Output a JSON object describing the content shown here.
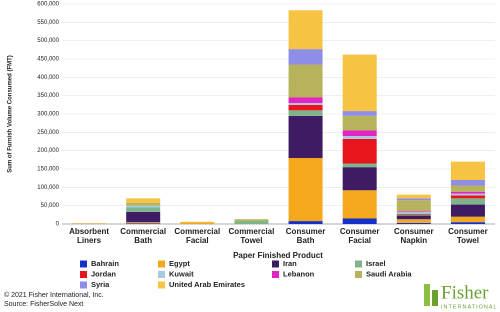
{
  "chart_data": {
    "type": "stacked_bar",
    "y_label": "Sum of Furnish Volume Consumed (FMT)",
    "x_label": "Paper Finished Product",
    "categories": [
      "Absorbent Liners",
      "Commercial Bath",
      "Commercial Facial",
      "Commercial Towel",
      "Consumer Bath",
      "Consumer Facial",
      "Consumer Napkin",
      "Consumer Towel"
    ],
    "series": [
      {
        "name": "Bahrain",
        "color": "#1530c8",
        "values": [
          0,
          2000,
          0,
          0,
          8000,
          15000,
          3000,
          5000
        ]
      },
      {
        "name": "Egypt",
        "color": "#f6a81c",
        "values": [
          1000,
          3000,
          5000,
          0,
          172000,
          77000,
          10000,
          15000
        ]
      },
      {
        "name": "Iran",
        "color": "#3f1b63",
        "values": [
          0,
          28000,
          0,
          0,
          115000,
          63000,
          10000,
          33000
        ]
      },
      {
        "name": "Israel",
        "color": "#7db48a",
        "values": [
          0,
          12000,
          0,
          8000,
          15000,
          10000,
          3000,
          17000
        ]
      },
      {
        "name": "Jordan",
        "color": "#e8151e",
        "values": [
          0,
          0,
          0,
          0,
          15000,
          67000,
          2000,
          8000
        ]
      },
      {
        "name": "Kuwait",
        "color": "#a9c9e2",
        "values": [
          0,
          5000,
          0,
          0,
          5000,
          8000,
          5000,
          5000
        ]
      },
      {
        "name": "Lebanon",
        "color": "#e324c4",
        "values": [
          0,
          0,
          0,
          0,
          15000,
          15000,
          2000,
          5000
        ]
      },
      {
        "name": "Saudi Arabia",
        "color": "#b7b35c",
        "values": [
          1000,
          8000,
          0,
          5000,
          90000,
          40000,
          30000,
          17000
        ]
      },
      {
        "name": "Syria",
        "color": "#8f8ee6",
        "values": [
          0,
          0,
          0,
          0,
          42000,
          13000,
          5000,
          15000
        ]
      },
      {
        "name": "United Arab Emirates",
        "color": "#f7c343",
        "values": [
          0,
          12000,
          1000,
          0,
          106000,
          154000,
          10000,
          50000
        ]
      }
    ],
    "ylim": [
      0,
      600000
    ],
    "yticks": [
      0,
      {
        "value": 50000,
        "label": "50,000"
      },
      {
        "value": 100000,
        "label": "100,000"
      },
      {
        "value": 150000,
        "label": "150,000"
      },
      {
        "value": 200000,
        "label": "200,000"
      },
      {
        "value": 250000,
        "label": "250,000"
      },
      {
        "value": 300000,
        "label": "300,000"
      },
      {
        "value": 350000,
        "label": "350,000"
      },
      {
        "value": 400000,
        "label": "400,000"
      },
      {
        "value": 450000,
        "label": "450,000"
      },
      {
        "value": 500000,
        "label": "500,000"
      },
      {
        "value": 550000,
        "label": "550,000"
      },
      {
        "value": 600000,
        "label": "600,000"
      }
    ],
    "grid": true
  },
  "footer": {
    "copyright": "© 2021 Fisher International, Inc.",
    "source": "Source: FisherSolve Next"
  },
  "logo": {
    "name": "Fisher",
    "tagline": "INTERNATIONAL"
  }
}
